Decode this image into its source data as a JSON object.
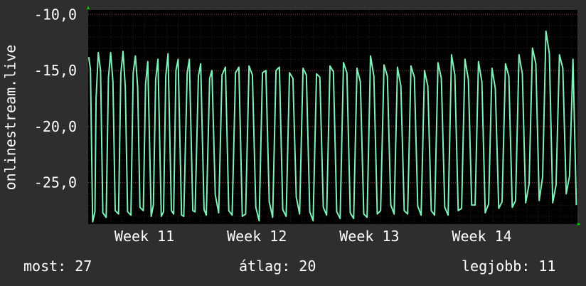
{
  "chart_data": {
    "type": "line",
    "ylabel": "onlinestream.live",
    "yticks": [
      {
        "label": "-10,0",
        "value": -10
      },
      {
        "label": "-15,0",
        "value": -15
      },
      {
        "label": "-20,0",
        "value": -20
      },
      {
        "label": "-25,0",
        "value": -25
      }
    ],
    "ylim": [
      -28.7,
      -9.6
    ],
    "xticks": [
      {
        "label": "Week 11",
        "value": 11
      },
      {
        "label": "Week 12",
        "value": 12
      },
      {
        "label": "Week 13",
        "value": 13
      },
      {
        "label": "Week 14",
        "value": 14
      }
    ],
    "xlim": [
      10.5,
      14.85
    ],
    "grid": true,
    "colors": {
      "background": "#2e2e2e",
      "plot": "#000000",
      "line": "#80f0b8",
      "grid": "#5a3030",
      "axis_arrow": "#00cc00"
    },
    "series": [
      {
        "values": [
          [
            10.505,
            -13.8
          ],
          [
            10.52,
            -14.9
          ],
          [
            10.54,
            -28.5
          ],
          [
            10.56,
            -27.6
          ],
          [
            10.57,
            -17.5
          ],
          [
            10.59,
            -13.4
          ],
          [
            10.61,
            -15.0
          ],
          [
            10.63,
            -27.7
          ],
          [
            10.66,
            -28.1
          ],
          [
            10.68,
            -15.6
          ],
          [
            10.7,
            -13.4
          ],
          [
            10.72,
            -16.0
          ],
          [
            10.74,
            -27.5
          ],
          [
            10.77,
            -27.8
          ],
          [
            10.79,
            -15.3
          ],
          [
            10.81,
            -13.3
          ],
          [
            10.83,
            -16.5
          ],
          [
            10.85,
            -27.6
          ],
          [
            10.88,
            -27.9
          ],
          [
            10.9,
            -15.2
          ],
          [
            10.92,
            -13.7
          ],
          [
            10.94,
            -16.5
          ],
          [
            10.96,
            -27.2
          ],
          [
            10.99,
            -27.5
          ],
          [
            11.01,
            -16.2
          ],
          [
            11.03,
            -14.2
          ],
          [
            11.06,
            -28.0
          ],
          [
            11.08,
            -27.0
          ],
          [
            11.1,
            -15.8
          ],
          [
            11.12,
            -14.0
          ],
          [
            11.15,
            -28.0
          ],
          [
            11.17,
            -27.6
          ],
          [
            11.19,
            -15.5
          ],
          [
            11.21,
            -13.5
          ],
          [
            11.24,
            -27.5
          ],
          [
            11.26,
            -27.8
          ],
          [
            11.28,
            -15.0
          ],
          [
            11.3,
            -14.0
          ],
          [
            11.33,
            -27.9
          ],
          [
            11.35,
            -28.0
          ],
          [
            11.38,
            -15.2
          ],
          [
            11.4,
            -14.0
          ],
          [
            11.43,
            -27.5
          ],
          [
            11.45,
            -27.6
          ],
          [
            11.48,
            -15.5
          ],
          [
            11.5,
            -14.4
          ],
          [
            11.53,
            -27.4
          ],
          [
            11.55,
            -27.9
          ],
          [
            11.58,
            -15.7
          ],
          [
            11.6,
            -15.0
          ],
          [
            11.63,
            -26.1
          ],
          [
            11.66,
            -27.7
          ],
          [
            11.69,
            -15.4
          ],
          [
            11.72,
            -14.7
          ],
          [
            11.75,
            -27.5
          ],
          [
            11.78,
            -27.9
          ],
          [
            11.81,
            -15.2
          ],
          [
            11.84,
            -14.7
          ],
          [
            11.87,
            -28.0
          ],
          [
            11.9,
            -27.8
          ],
          [
            11.93,
            -14.6
          ],
          [
            11.96,
            -15.4
          ],
          [
            11.99,
            -27.2
          ],
          [
            12.02,
            -28.4
          ],
          [
            12.05,
            -15.2
          ],
          [
            12.08,
            -15.0
          ],
          [
            12.11,
            -26.7
          ],
          [
            12.14,
            -28.1
          ],
          [
            12.17,
            -15.0
          ],
          [
            12.2,
            -14.7
          ],
          [
            12.23,
            -27.4
          ],
          [
            12.26,
            -28.0
          ],
          [
            12.29,
            -15.2
          ],
          [
            12.32,
            -15.7
          ],
          [
            12.35,
            -26.3
          ],
          [
            12.38,
            -27.8
          ],
          [
            12.41,
            -14.8
          ],
          [
            12.44,
            -15.4
          ],
          [
            12.47,
            -27.6
          ],
          [
            12.5,
            -28.4
          ],
          [
            12.53,
            -15.3
          ],
          [
            12.56,
            -15.6
          ],
          [
            12.59,
            -27.2
          ],
          [
            12.62,
            -27.9
          ],
          [
            12.65,
            -14.6
          ],
          [
            12.68,
            -15.1
          ],
          [
            12.71,
            -27.6
          ],
          [
            12.74,
            -28.2
          ],
          [
            12.77,
            -14.3
          ],
          [
            12.8,
            -15.2
          ],
          [
            12.83,
            -27.7
          ],
          [
            12.86,
            -28.2
          ],
          [
            12.89,
            -14.8
          ],
          [
            12.92,
            -16.0
          ],
          [
            12.95,
            -27.8
          ],
          [
            12.98,
            -28.1
          ],
          [
            13.01,
            -13.7
          ],
          [
            13.04,
            -15.5
          ],
          [
            13.07,
            -27.8
          ],
          [
            13.1,
            -27.5
          ],
          [
            13.13,
            -14.5
          ],
          [
            13.16,
            -15.5
          ],
          [
            13.19,
            -27.0
          ],
          [
            13.22,
            -27.8
          ],
          [
            13.25,
            -14.7
          ],
          [
            13.28,
            -16.4
          ],
          [
            13.31,
            -27.5
          ],
          [
            13.34,
            -27.8
          ],
          [
            13.37,
            -14.6
          ],
          [
            13.4,
            -15.6
          ],
          [
            13.43,
            -27.1
          ],
          [
            13.46,
            -27.9
          ],
          [
            13.49,
            -15.0
          ],
          [
            13.52,
            -16.4
          ],
          [
            13.55,
            -27.5
          ],
          [
            13.58,
            -27.9
          ],
          [
            13.61,
            -14.3
          ],
          [
            13.64,
            -15.7
          ],
          [
            13.67,
            -27.2
          ],
          [
            13.7,
            -27.9
          ],
          [
            13.73,
            -13.6
          ],
          [
            13.76,
            -15.4
          ],
          [
            13.79,
            -27.5
          ],
          [
            13.82,
            -27.3
          ],
          [
            13.85,
            -14.0
          ],
          [
            13.88,
            -15.8
          ],
          [
            13.91,
            -27.0
          ],
          [
            13.94,
            -27.0
          ],
          [
            13.97,
            -14.2
          ],
          [
            14.0,
            -16.0
          ],
          [
            14.03,
            -27.7
          ],
          [
            14.06,
            -26.9
          ],
          [
            14.09,
            -14.8
          ],
          [
            14.12,
            -16.6
          ],
          [
            14.15,
            -27.3
          ],
          [
            14.18,
            -26.7
          ],
          [
            14.21,
            -14.4
          ],
          [
            14.24,
            -15.5
          ],
          [
            14.27,
            -27.2
          ],
          [
            14.3,
            -26.6
          ],
          [
            14.33,
            -13.6
          ],
          [
            14.36,
            -15.3
          ],
          [
            14.39,
            -26.8
          ],
          [
            14.42,
            -25.1
          ],
          [
            14.45,
            -13.0
          ],
          [
            14.48,
            -14.4
          ],
          [
            14.51,
            -26.6
          ],
          [
            14.54,
            -24.5
          ],
          [
            14.57,
            -11.5
          ],
          [
            14.6,
            -13.5
          ],
          [
            14.63,
            -26.8
          ],
          [
            14.66,
            -25.2
          ],
          [
            14.69,
            -13.6
          ],
          [
            14.72,
            -14.8
          ],
          [
            14.75,
            -26.0
          ],
          [
            14.78,
            -24.4
          ],
          [
            14.81,
            -14.0
          ],
          [
            14.84,
            -27.0
          ]
        ]
      }
    ]
  },
  "summary": {
    "current": "most: 27",
    "average": "átlag: 20",
    "maximum": "legjobb: 11"
  }
}
